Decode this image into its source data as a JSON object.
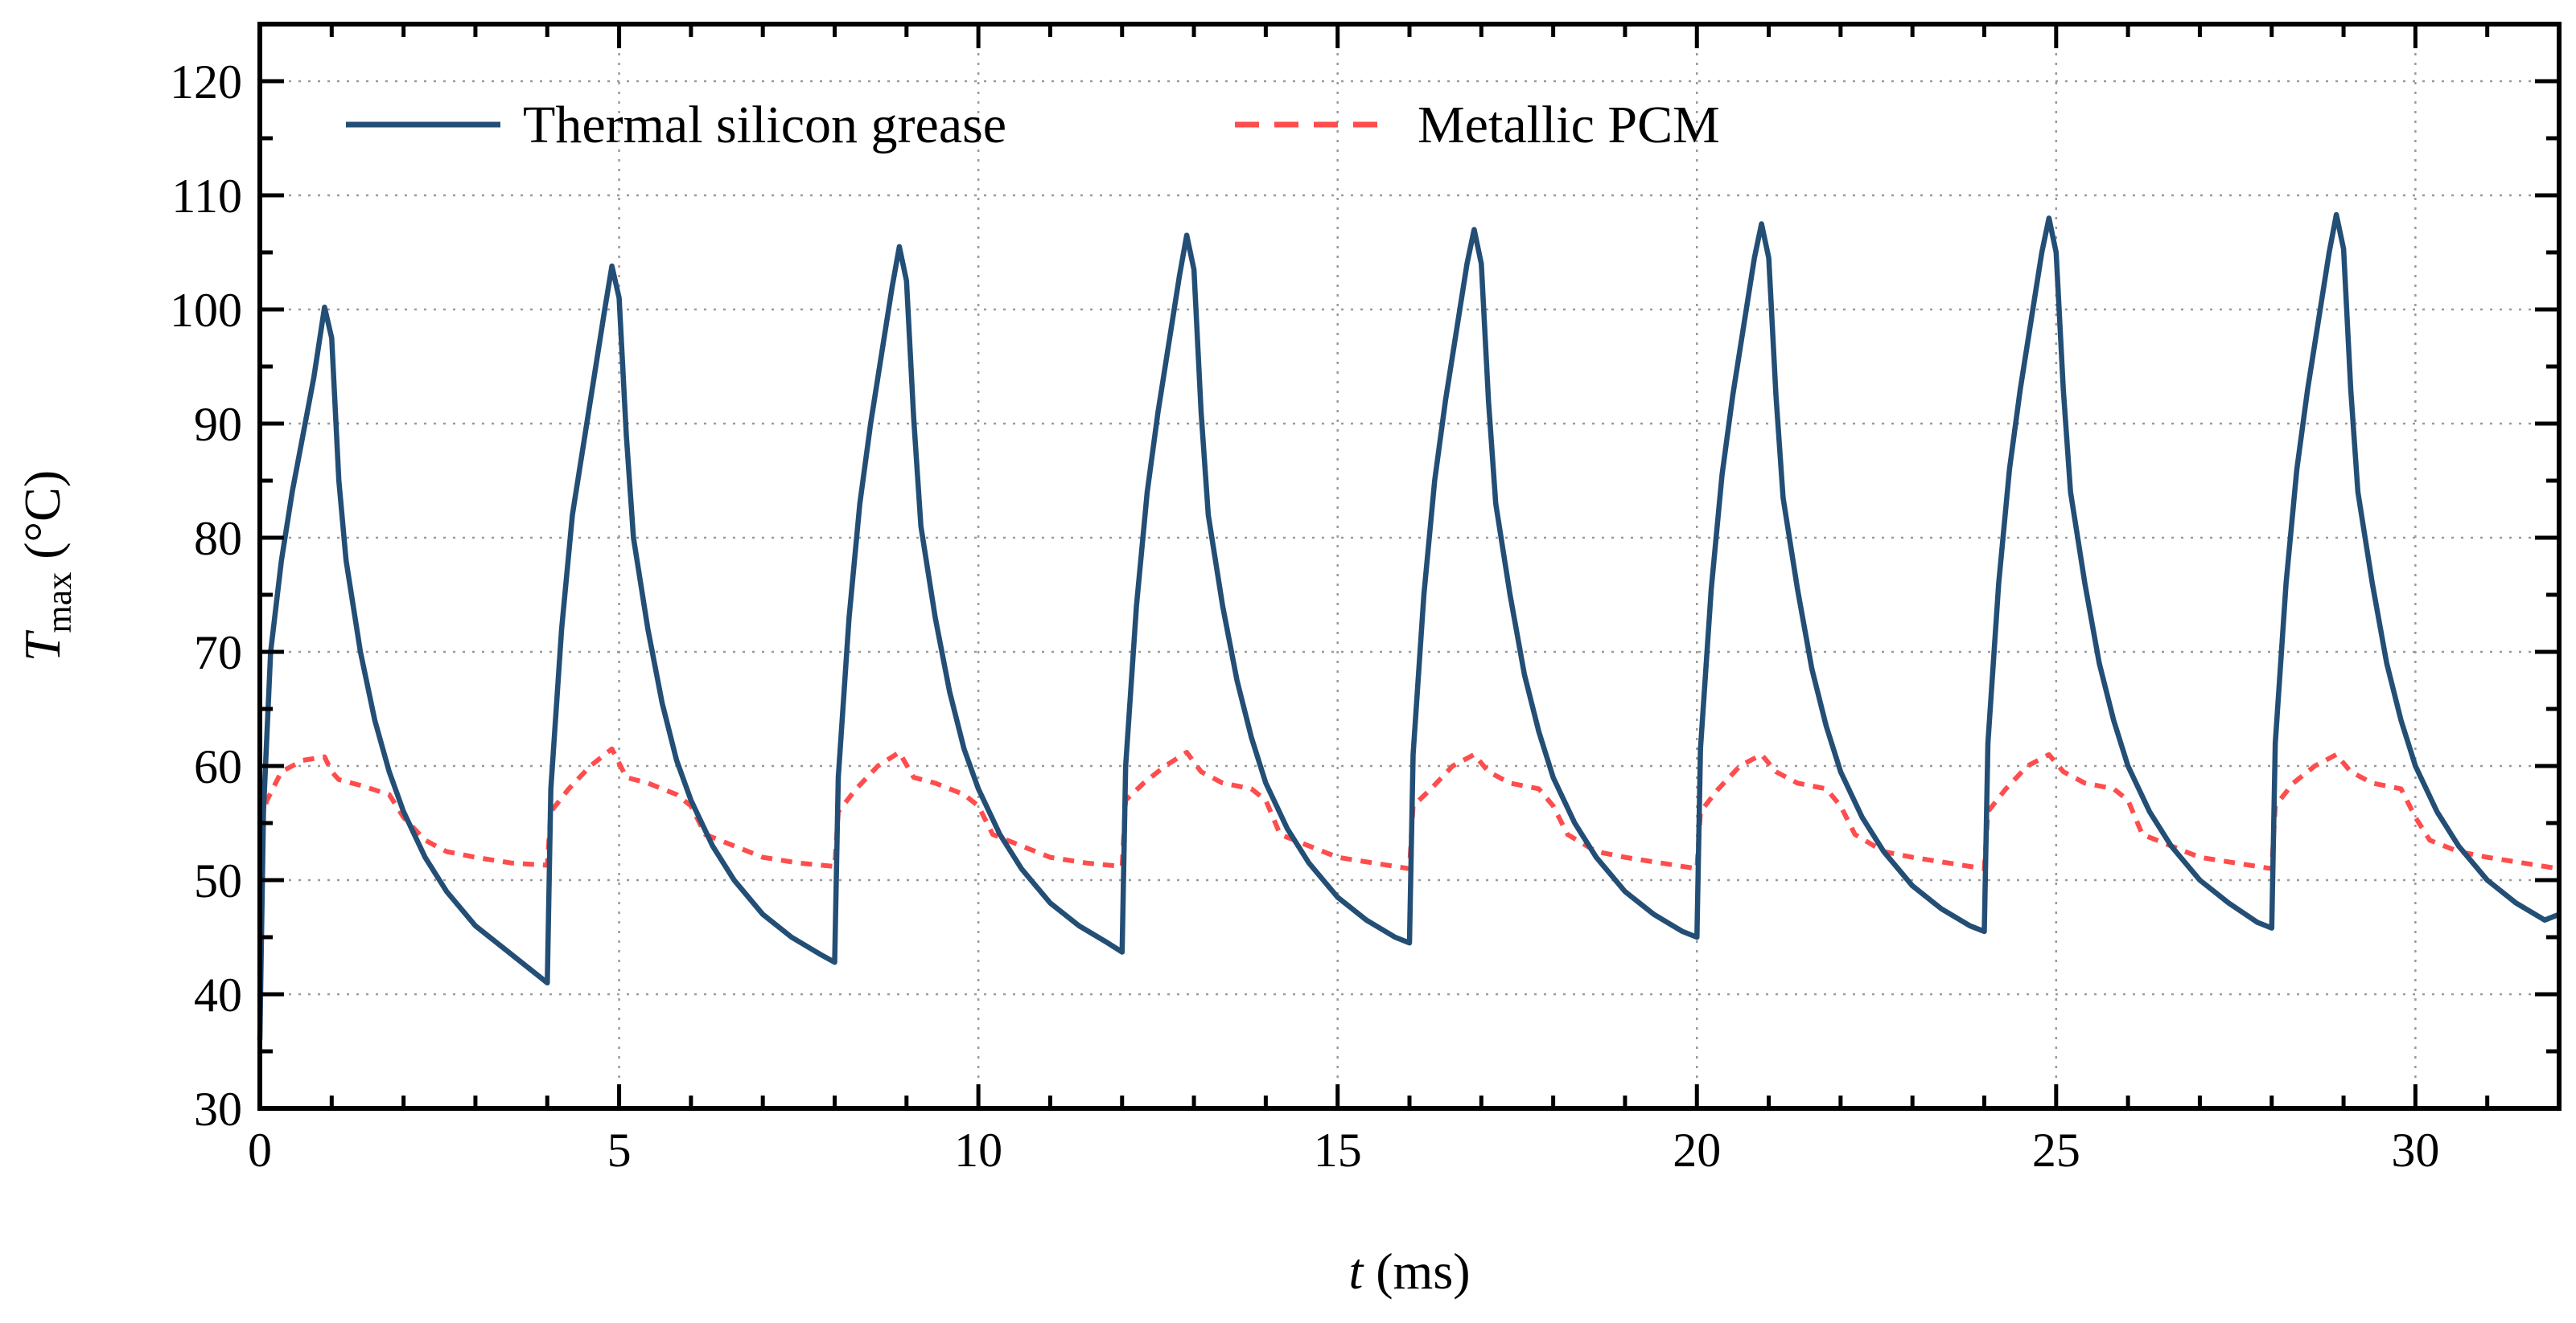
{
  "chart_data": {
    "type": "line",
    "xlabel_var": "t",
    "xlabel_unit": " (ms)",
    "ylabel_var": "T",
    "ylabel_sub": "max",
    "ylabel_unit": " (°C)",
    "xlim": [
      0,
      32
    ],
    "ylim": [
      30,
      125
    ],
    "xticks": [
      0,
      5,
      10,
      15,
      20,
      25,
      30
    ],
    "yticks": [
      30,
      40,
      50,
      60,
      70,
      80,
      90,
      100,
      110,
      120
    ],
    "grid": true,
    "legend_position": "top-left",
    "series": [
      {
        "name": "Thermal silicon grease",
        "color": "#234e75",
        "style": "solid",
        "x": [
          0,
          0.05,
          0.15,
          0.3,
          0.45,
          0.6,
          0.75,
          0.9,
          1.0,
          1.1,
          1.2,
          1.4,
          1.6,
          1.8,
          2.0,
          2.3,
          2.6,
          3.0,
          3.4,
          3.8,
          4.0,
          4.05,
          4.2,
          4.35,
          4.5,
          4.65,
          4.8,
          4.9,
          5.0,
          5.1,
          5.2,
          5.4,
          5.6,
          5.8,
          6.0,
          6.3,
          6.6,
          7.0,
          7.4,
          7.8,
          8.0,
          8.05,
          8.2,
          8.35,
          8.5,
          8.65,
          8.8,
          8.9,
          9.0,
          9.1,
          9.2,
          9.4,
          9.6,
          9.8,
          10.0,
          10.3,
          10.6,
          11.0,
          11.4,
          11.8,
          12.0,
          12.05,
          12.2,
          12.35,
          12.5,
          12.65,
          12.8,
          12.9,
          13.0,
          13.1,
          13.2,
          13.4,
          13.6,
          13.8,
          14.0,
          14.3,
          14.6,
          15.0,
          15.4,
          15.8,
          16.0,
          16.05,
          16.2,
          16.35,
          16.5,
          16.65,
          16.8,
          16.9,
          17.0,
          17.1,
          17.2,
          17.4,
          17.6,
          17.8,
          18.0,
          18.3,
          18.6,
          19.0,
          19.4,
          19.8,
          20.0,
          20.05,
          20.2,
          20.35,
          20.5,
          20.65,
          20.8,
          20.9,
          21.0,
          21.1,
          21.2,
          21.4,
          21.6,
          21.8,
          22.0,
          22.3,
          22.6,
          23.0,
          23.4,
          23.8,
          24.0,
          24.05,
          24.2,
          24.35,
          24.5,
          24.65,
          24.8,
          24.9,
          25.0,
          25.1,
          25.2,
          25.4,
          25.6,
          25.8,
          26.0,
          26.3,
          26.6,
          27.0,
          27.4,
          27.8,
          28.0,
          28.05,
          28.2,
          28.35,
          28.5,
          28.65,
          28.8,
          28.9,
          29.0,
          29.1,
          29.2,
          29.4,
          29.6,
          29.8,
          30.0,
          30.3,
          30.6,
          31.0,
          31.4,
          31.8,
          32.0
        ],
        "y": [
          36,
          56,
          70,
          78,
          84,
          89,
          94,
          100.2,
          97.5,
          85,
          78,
          70,
          64,
          59.5,
          56,
          52,
          49,
          46,
          44,
          42,
          41,
          58,
          72,
          82,
          88,
          94,
          100,
          103.8,
          101,
          89,
          80,
          72,
          65.5,
          60.5,
          57,
          53,
          50,
          47,
          45,
          43.5,
          42.8,
          59,
          73,
          83,
          90,
          96,
          102,
          105.5,
          102.5,
          90.5,
          81,
          73,
          66.5,
          61.5,
          58,
          54,
          51,
          48,
          46,
          44.5,
          43.7,
          60,
          74,
          84,
          91,
          97,
          103,
          106.5,
          103.5,
          91,
          82,
          74,
          67.5,
          62.5,
          58.5,
          54.5,
          51.5,
          48.5,
          46.5,
          45,
          44.5,
          61,
          75,
          85,
          92,
          98,
          104,
          107,
          104,
          92,
          83,
          75,
          68,
          63,
          59,
          55,
          52,
          49,
          47,
          45.5,
          45,
          61.5,
          75.5,
          85.5,
          92.5,
          98.5,
          104.5,
          107.5,
          104.5,
          92.5,
          83.5,
          75.5,
          68.5,
          63.5,
          59.5,
          55.5,
          52.5,
          49.5,
          47.5,
          46,
          45.5,
          62,
          76,
          86,
          93,
          99,
          105,
          108,
          105,
          93,
          84,
          76,
          69,
          64,
          60,
          56,
          53,
          50,
          48,
          46.3,
          45.8,
          62,
          76,
          86,
          93,
          99,
          105,
          108.3,
          105.3,
          93,
          84,
          76,
          69,
          64,
          60,
          56,
          53,
          50,
          48,
          46.5,
          47
        ]
      },
      {
        "name": "Metallic PCM",
        "color": "#ff4d4d",
        "style": "dashed",
        "x": [
          0,
          0.1,
          0.3,
          0.6,
          0.9,
          1.0,
          1.1,
          1.4,
          1.8,
          2.0,
          2.3,
          2.6,
          3.0,
          3.5,
          4.0,
          4.05,
          4.3,
          4.6,
          4.9,
          5.1,
          5.4,
          5.8,
          6.0,
          6.2,
          6.6,
          7.0,
          7.5,
          8.0,
          8.05,
          8.3,
          8.6,
          8.9,
          9.1,
          9.4,
          9.8,
          10.0,
          10.2,
          10.6,
          11.0,
          11.5,
          12.0,
          12.05,
          12.3,
          12.6,
          12.9,
          13.1,
          13.4,
          13.8,
          14.0,
          14.2,
          14.6,
          15.0,
          15.5,
          16.0,
          16.05,
          16.3,
          16.6,
          16.9,
          17.1,
          17.4,
          17.8,
          18.0,
          18.2,
          18.6,
          19.0,
          19.5,
          20.0,
          20.05,
          20.3,
          20.6,
          20.9,
          21.1,
          21.4,
          21.8,
          22.0,
          22.2,
          22.6,
          23.0,
          23.5,
          24.0,
          24.05,
          24.3,
          24.6,
          24.9,
          25.1,
          25.4,
          25.8,
          26.0,
          26.2,
          26.6,
          27.0,
          27.5,
          28.0,
          28.05,
          28.3,
          28.6,
          28.9,
          29.1,
          29.4,
          29.8,
          30.0,
          30.2,
          30.6,
          31.0,
          31.5,
          32.0
        ],
        "y": [
          55,
          57,
          59.5,
          60.5,
          60.8,
          59.5,
          58.8,
          58.3,
          57.5,
          55.5,
          53.5,
          52.5,
          52,
          51.5,
          51.3,
          56,
          58,
          60,
          61.5,
          59,
          58.5,
          57.5,
          56.5,
          54,
          53,
          52,
          51.5,
          51.2,
          56,
          58,
          60,
          61.2,
          59,
          58.5,
          57.5,
          56.5,
          54,
          53,
          52,
          51.5,
          51.2,
          57,
          58.5,
          60,
          61.2,
          59.5,
          58.5,
          58,
          57,
          54,
          53,
          52,
          51.5,
          51,
          56.5,
          58,
          60,
          61,
          59.5,
          58.5,
          58,
          56.5,
          54,
          52.5,
          52,
          51.5,
          51,
          56,
          58,
          60,
          61,
          59.5,
          58.5,
          58,
          56.5,
          54,
          52.5,
          52,
          51.5,
          51,
          56,
          58,
          60,
          61,
          59.5,
          58.5,
          58,
          57,
          54,
          53,
          52,
          51.5,
          51,
          56.5,
          58.5,
          60,
          61,
          59.5,
          58.5,
          58,
          55.5,
          53.5,
          52.5,
          52,
          51.5,
          51
        ]
      }
    ]
  }
}
